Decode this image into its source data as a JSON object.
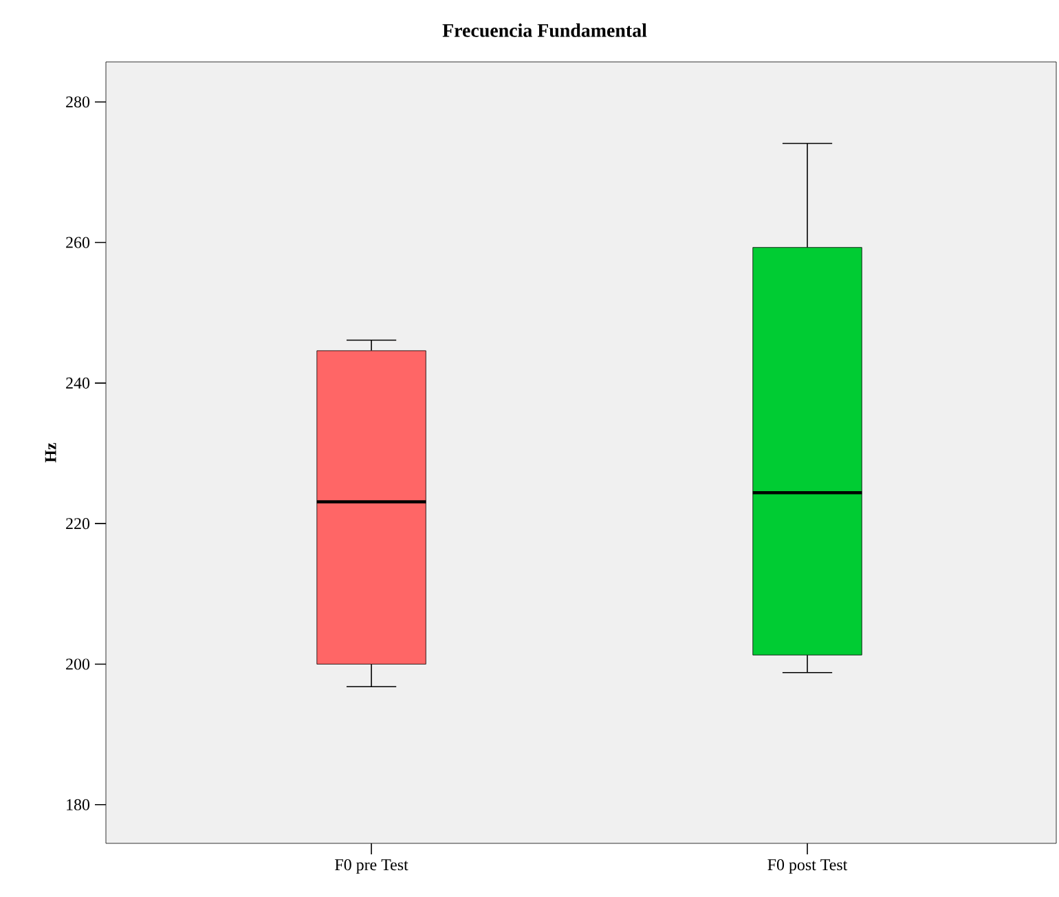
{
  "chart_data": {
    "type": "box",
    "title": "Frecuencia Fundamental",
    "ylabel": "Hz",
    "categories": [
      "F0 pre Test",
      "F0 post Test"
    ],
    "boxes": [
      {
        "low": 196.8,
        "q1": 200.0,
        "median": 223.1,
        "q3": 244.6,
        "high": 246.1
      },
      {
        "low": 198.8,
        "q1": 201.3,
        "median": 224.4,
        "q3": 259.3,
        "high": 274.1
      }
    ],
    "colors": [
      "#ff6666",
      "#00cc33"
    ],
    "ylim": [
      174.5,
      285.7
    ],
    "yticks": [
      180,
      200,
      220,
      240,
      260,
      280
    ],
    "grid": false
  }
}
